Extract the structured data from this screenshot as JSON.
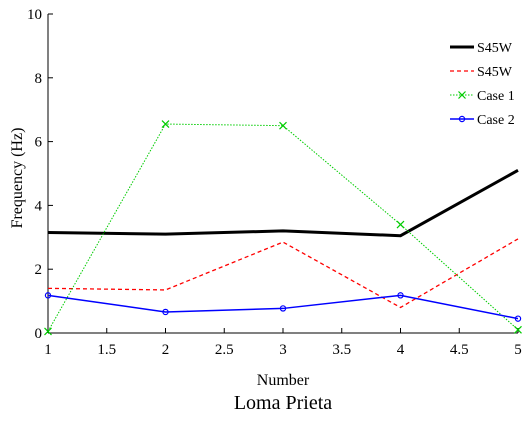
{
  "chart_data": {
    "type": "line",
    "title": "Loma Prieta",
    "xlabel": "Number",
    "ylabel": "Frequency (Hz)",
    "xlim": [
      1,
      5
    ],
    "ylim": [
      0,
      10
    ],
    "xticks": [
      "1",
      "1.5",
      "2",
      "2.5",
      "3",
      "3.5",
      "4",
      "4.5",
      "5"
    ],
    "yticks": [
      "0",
      "2",
      "4",
      "6",
      "8",
      "10"
    ],
    "grid": false,
    "legend_position": "top-right",
    "x": [
      1,
      2,
      3,
      4,
      5
    ],
    "series": [
      {
        "name": "S45W",
        "values": [
          3.15,
          3.1,
          3.2,
          3.05,
          5.1
        ],
        "color": "#000000",
        "style": "solid-thick",
        "marker": "none"
      },
      {
        "name": "S45W",
        "values": [
          1.4,
          1.35,
          2.85,
          0.8,
          2.95
        ],
        "color": "#ff0000",
        "style": "dashed",
        "marker": "none"
      },
      {
        "name": "Case 1",
        "values": [
          0.05,
          6.55,
          6.5,
          3.4,
          0.1
        ],
        "color": "#00cc00",
        "style": "dotted",
        "marker": "x"
      },
      {
        "name": "Case 2",
        "values": [
          1.18,
          0.66,
          0.77,
          1.18,
          0.45
        ],
        "color": "#0000ff",
        "style": "solid",
        "marker": "circle"
      }
    ]
  }
}
